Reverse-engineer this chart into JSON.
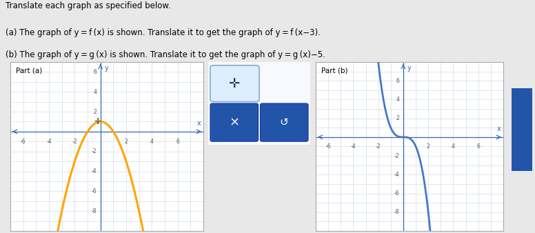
{
  "title_a": "Part (a)",
  "title_b": "Part (b)",
  "bg_color": "#e8e8e8",
  "panel_bg": "#ffffff",
  "grid_color": "#c5d5e5",
  "axis_color": "#3366bb",
  "parabola_color": "#FFA500",
  "cubic_color": "#4477cc",
  "panel_a_xlim": [
    -7,
    8
  ],
  "panel_a_ylim": [
    -10,
    7
  ],
  "panel_b_xlim": [
    -7,
    8
  ],
  "panel_b_ylim": [
    -10,
    8
  ],
  "move_btn_bg": "#ddeeff",
  "move_btn_edge": "#99bbdd",
  "dark_btn_bg": "#2255aa",
  "mid_panel_bg": "#f5f5f5",
  "mid_panel_edge": "#cccccc",
  "right_btn_bg": "#2255aa"
}
